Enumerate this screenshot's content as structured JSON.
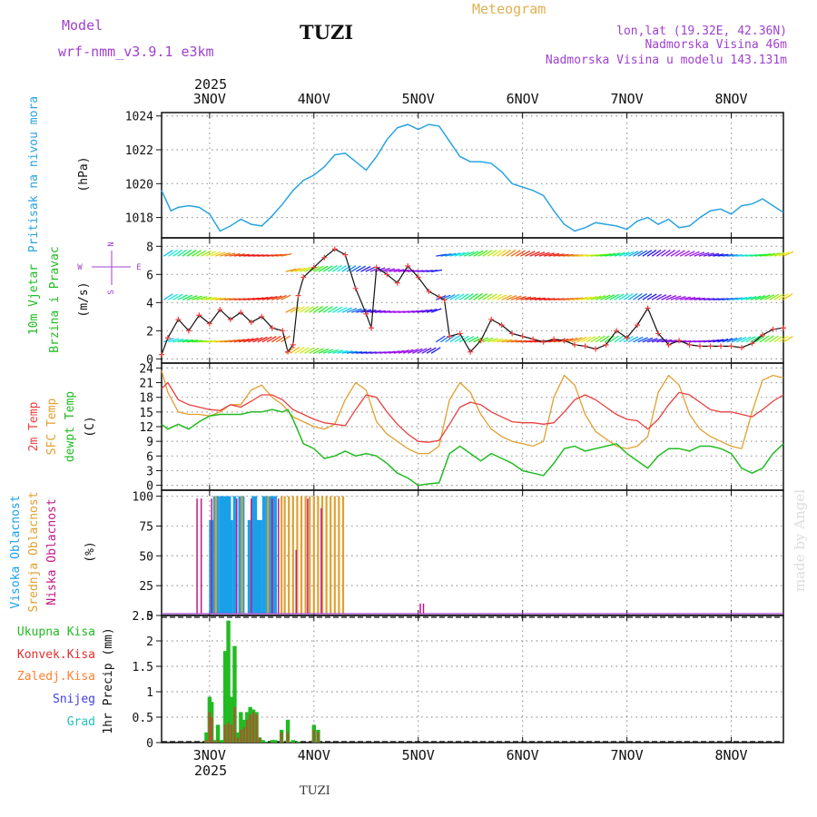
{
  "header": {
    "model_label": "Model",
    "model_name": "wrf-nmm_v3.9.1 e3km",
    "station": "TUZI",
    "meteogram": "Meteogram",
    "lonlat": "lon,lat (19.32E, 42.36N)",
    "elevation": "Nadmorska Visina 46m",
    "model_elevation": "Nadmorska Visina u modelu 143.131m",
    "footer_station": "TUZI",
    "watermark": "made by Angel",
    "year": "2025"
  },
  "colors": {
    "pressure": "#2aa3e0",
    "wind": "#22bb22",
    "temp2m": "#e84040",
    "sfc": "#e0a030",
    "dewpt": "#22bb22",
    "high": "#1aa0e8",
    "mid": "#e0a030",
    "low": "#c01888",
    "purple": "#a040d0",
    "conv": "#e03030",
    "frozen": "#ff8030",
    "snow": "#4040e0",
    "grad": "#20c0c0"
  },
  "chart_data": [
    {
      "type": "line",
      "title": "Pritisak na nivou mora",
      "ylabel": "(hPa)",
      "ylim": [
        1016.8,
        1024.2
      ],
      "yticks": [
        "1024",
        "1022",
        "1020",
        "1018"
      ],
      "xlim": [
        2.54,
        8.5
      ],
      "xticks": [
        "3NOV",
        "4NOV",
        "5NOV",
        "6NOV",
        "7NOV",
        "8NOV"
      ],
      "x": [
        2.54,
        2.63,
        2.7,
        2.8,
        2.9,
        3.0,
        3.1,
        3.2,
        3.3,
        3.4,
        3.5,
        3.6,
        3.7,
        3.8,
        3.9,
        4.0,
        4.1,
        4.2,
        4.3,
        4.4,
        4.5,
        4.6,
        4.7,
        4.8,
        4.9,
        5.0,
        5.1,
        5.2,
        5.3,
        5.4,
        5.5,
        5.6,
        5.7,
        5.8,
        5.9,
        6.0,
        6.1,
        6.2,
        6.3,
        6.4,
        6.5,
        6.6,
        6.7,
        6.8,
        6.9,
        7.0,
        7.1,
        7.2,
        7.3,
        7.4,
        7.5,
        7.6,
        7.7,
        7.8,
        7.9,
        8.0,
        8.1,
        8.2,
        8.3,
        8.4,
        8.5
      ],
      "values": [
        1019.6,
        1018.4,
        1018.6,
        1018.7,
        1018.6,
        1018.2,
        1017.2,
        1017.5,
        1017.9,
        1017.6,
        1017.5,
        1018.1,
        1018.8,
        1019.6,
        1020.2,
        1020.5,
        1021.0,
        1021.7,
        1021.8,
        1021.3,
        1020.8,
        1021.6,
        1022.6,
        1023.3,
        1023.5,
        1023.2,
        1023.5,
        1023.4,
        1022.5,
        1021.6,
        1021.3,
        1021.3,
        1021.2,
        1020.7,
        1020.0,
        1019.8,
        1019.6,
        1019.3,
        1018.4,
        1017.6,
        1017.2,
        1017.4,
        1017.7,
        1017.6,
        1017.5,
        1017.3,
        1017.8,
        1018.0,
        1017.6,
        1017.9,
        1017.4,
        1017.5,
        1018.0,
        1018.4,
        1018.5,
        1018.2,
        1018.7,
        1018.8,
        1019.1,
        1018.7,
        1018.3
      ]
    },
    {
      "type": "line",
      "title": "10m Vjetar Brzina i Pravac",
      "ylabel": "(m/s)",
      "compass": [
        "N",
        "W",
        "E",
        "S"
      ],
      "ylim": [
        -0.3,
        8.6
      ],
      "yticks": [
        "8",
        "6",
        "4",
        "2",
        "0"
      ],
      "x": [
        2.54,
        2.6,
        2.7,
        2.8,
        2.9,
        3.0,
        3.1,
        3.2,
        3.3,
        3.4,
        3.5,
        3.6,
        3.7,
        3.75,
        3.8,
        3.85,
        3.9,
        4.0,
        4.1,
        4.2,
        4.3,
        4.4,
        4.5,
        4.55,
        4.6,
        4.7,
        4.8,
        4.9,
        5.0,
        5.1,
        5.2,
        5.25,
        5.3,
        5.4,
        5.5,
        5.6,
        5.7,
        5.8,
        5.9,
        6.0,
        6.1,
        6.2,
        6.3,
        6.4,
        6.5,
        6.6,
        6.7,
        6.8,
        6.9,
        7.0,
        7.1,
        7.2,
        7.3,
        7.4,
        7.5,
        7.6,
        7.7,
        7.8,
        7.9,
        8.0,
        8.1,
        8.2,
        8.3,
        8.4,
        8.5
      ],
      "values": [
        0.3,
        1.5,
        2.8,
        2.0,
        3.1,
        2.5,
        3.5,
        2.8,
        3.3,
        2.6,
        3.0,
        2.2,
        2.0,
        0.5,
        1.0,
        4.5,
        5.8,
        6.5,
        7.2,
        7.8,
        7.4,
        5.0,
        3.2,
        2.2,
        6.5,
        6.0,
        5.4,
        6.6,
        5.8,
        4.8,
        4.4,
        4.2,
        1.6,
        1.8,
        0.5,
        1.3,
        2.8,
        2.4,
        1.8,
        1.6,
        1.4,
        1.2,
        1.4,
        1.3,
        1.0,
        0.9,
        0.7,
        1.0,
        2.0,
        1.5,
        2.4,
        3.6,
        1.8,
        1.0,
        1.3,
        1.0,
        0.9,
        0.9,
        0.9,
        0.9,
        0.8,
        1.1,
        1.7,
        2.1,
        2.2
      ]
    },
    {
      "type": "line",
      "title": "2m Temp / SFC Temp / dewpt Temp",
      "ylabel": "(C)",
      "ylim": [
        -1,
        25
      ],
      "yticks": [
        "24",
        "21",
        "18",
        "15",
        "12",
        "9",
        "6",
        "3",
        "0"
      ],
      "series": [
        {
          "name": "2m Temp",
          "x": [
            2.54,
            2.6,
            2.7,
            2.8,
            2.9,
            3.0,
            3.1,
            3.2,
            3.3,
            3.4,
            3.5,
            3.6,
            3.7,
            3.8,
            3.9,
            4.0,
            4.1,
            4.2,
            4.3,
            4.4,
            4.5,
            4.6,
            4.7,
            4.8,
            4.9,
            5.0,
            5.1,
            5.2,
            5.3,
            5.4,
            5.5,
            5.6,
            5.7,
            5.8,
            5.9,
            6.0,
            6.1,
            6.2,
            6.3,
            6.4,
            6.5,
            6.6,
            6.7,
            6.8,
            6.9,
            7.0,
            7.1,
            7.2,
            7.3,
            7.4,
            7.5,
            7.6,
            7.7,
            7.8,
            7.9,
            8.0,
            8.1,
            8.2,
            8.3,
            8.4,
            8.5
          ],
          "values": [
            19.8,
            21.0,
            17.5,
            16.5,
            16.0,
            15.5,
            15.3,
            16.5,
            16.0,
            17.2,
            18.5,
            18.5,
            17.5,
            15.5,
            14.5,
            13.5,
            12.8,
            12.5,
            12.2,
            15.5,
            18.5,
            18.0,
            15.0,
            12.5,
            10.5,
            9.0,
            8.8,
            9.2,
            12.5,
            16.0,
            17.0,
            16.5,
            15.0,
            14.0,
            13.0,
            12.8,
            12.8,
            12.5,
            12.8,
            15.0,
            17.5,
            18.5,
            17.5,
            16.0,
            14.5,
            13.5,
            13.2,
            11.5,
            13.5,
            16.5,
            19.0,
            18.5,
            17.0,
            15.5,
            15.0,
            15.0,
            14.5,
            14.0,
            15.5,
            17.2,
            18.5
          ]
        },
        {
          "name": "SFC Temp",
          "x": [
            2.54,
            2.6,
            2.7,
            2.8,
            2.9,
            3.0,
            3.1,
            3.2,
            3.3,
            3.4,
            3.5,
            3.6,
            3.7,
            3.8,
            3.9,
            4.0,
            4.1,
            4.2,
            4.3,
            4.4,
            4.5,
            4.6,
            4.7,
            4.8,
            4.9,
            5.0,
            5.1,
            5.2,
            5.3,
            5.4,
            5.5,
            5.6,
            5.7,
            5.8,
            5.9,
            6.0,
            6.1,
            6.2,
            6.3,
            6.4,
            6.5,
            6.6,
            6.7,
            6.8,
            6.9,
            7.0,
            7.1,
            7.2,
            7.3,
            7.4,
            7.5,
            7.6,
            7.7,
            7.8,
            7.9,
            8.0,
            8.1,
            8.2,
            8.3,
            8.4,
            8.5
          ],
          "values": [
            23.5,
            19.0,
            15.0,
            14.5,
            14.5,
            14.2,
            15.0,
            16.5,
            16.5,
            19.5,
            20.5,
            18.0,
            16.5,
            14.0,
            13.0,
            12.0,
            11.5,
            12.5,
            17.5,
            21.0,
            19.5,
            13.0,
            10.5,
            9.0,
            7.5,
            6.5,
            6.5,
            8.0,
            17.5,
            21.0,
            19.0,
            14.5,
            11.5,
            10.0,
            9.0,
            8.5,
            8.0,
            9.0,
            18.0,
            22.5,
            20.5,
            14.5,
            11.0,
            9.5,
            8.0,
            7.5,
            8.0,
            10.0,
            19.0,
            22.5,
            20.5,
            14.5,
            11.5,
            10.0,
            9.0,
            8.0,
            7.5,
            15.0,
            21.5,
            22.5,
            22.0
          ]
        },
        {
          "name": "dewpt Temp",
          "x": [
            2.54,
            2.6,
            2.7,
            2.8,
            2.9,
            3.0,
            3.1,
            3.2,
            3.3,
            3.4,
            3.5,
            3.6,
            3.7,
            3.75,
            3.8,
            3.9,
            4.0,
            4.1,
            4.2,
            4.3,
            4.4,
            4.5,
            4.6,
            4.7,
            4.8,
            4.9,
            5.0,
            5.1,
            5.2,
            5.3,
            5.4,
            5.5,
            5.6,
            5.7,
            5.8,
            5.9,
            6.0,
            6.1,
            6.2,
            6.3,
            6.4,
            6.5,
            6.6,
            6.7,
            6.8,
            6.9,
            7.0,
            7.1,
            7.2,
            7.3,
            7.4,
            7.5,
            7.6,
            7.7,
            7.8,
            7.9,
            8.0,
            8.1,
            8.2,
            8.3,
            8.4,
            8.5
          ],
          "values": [
            12.5,
            11.5,
            12.5,
            11.5,
            13.0,
            14.2,
            14.5,
            14.5,
            14.5,
            15.0,
            15.0,
            15.5,
            15.0,
            15.5,
            13.5,
            8.5,
            7.5,
            5.5,
            6.0,
            7.0,
            6.0,
            6.5,
            6.0,
            4.5,
            2.5,
            1.5,
            0.0,
            0.3,
            0.5,
            6.5,
            8.0,
            6.5,
            5.0,
            6.5,
            5.5,
            4.5,
            3.0,
            2.5,
            2.0,
            4.5,
            7.5,
            8.0,
            7.0,
            7.5,
            8.0,
            8.5,
            6.5,
            5.0,
            3.5,
            6.0,
            7.5,
            7.5,
            7.0,
            8.0,
            8.0,
            7.5,
            6.5,
            3.5,
            2.5,
            3.5,
            6.5,
            8.5
          ]
        }
      ]
    },
    {
      "type": "bar",
      "title": "Visoka Oblacnost / Srednja Oblacnost / Niska Oblacnost",
      "ylabel": "(%)",
      "ylim": [
        0,
        105
      ],
      "yticks": [
        "100",
        "75",
        "50",
        "25",
        "0"
      ],
      "series": [
        {
          "name": "Visoka Oblacnost",
          "x": [
            3.01,
            3.03,
            3.05,
            3.08,
            3.11,
            3.13,
            3.16,
            3.19,
            3.21,
            3.24,
            3.29,
            3.32,
            3.38,
            3.42,
            3.44,
            3.46,
            3.49,
            3.52,
            3.55,
            3.58,
            3.6,
            3.63
          ],
          "values": [
            80,
            80,
            100,
            100,
            100,
            100,
            100,
            100,
            80,
            100,
            100,
            100,
            80,
            100,
            100,
            80,
            80,
            100,
            100,
            100,
            100,
            100
          ]
        },
        {
          "name": "Srednja Oblacnost",
          "x": [
            3.06,
            3.31,
            3.56,
            3.69,
            3.72,
            3.76,
            3.8,
            3.84,
            3.88,
            3.92,
            3.96,
            4.0,
            4.04,
            4.08,
            4.12,
            4.16,
            4.2,
            4.24,
            4.28
          ],
          "values": [
            100,
            100,
            100,
            100,
            100,
            100,
            100,
            100,
            100,
            100,
            100,
            100,
            100,
            100,
            100,
            100,
            100,
            100,
            100
          ]
        },
        {
          "name": "Niska Oblacnost",
          "x": [
            2.88,
            2.92,
            3.02,
            3.26,
            3.4,
            3.6,
            3.66,
            3.83,
            3.94,
            4.07,
            5.02,
            5.05
          ],
          "values": [
            98,
            98,
            98,
            98,
            98,
            98,
            98,
            55,
            98,
            90,
            10,
            10
          ]
        }
      ]
    },
    {
      "type": "bar",
      "title": "Ukupna Kisa / Konvek.Kisa / Zaledj.Kisa / Snijeg / Grad",
      "ylabel": "1hr Precip (mm)",
      "ylim": [
        0,
        2.5
      ],
      "yticks": [
        "2.5",
        "2",
        "1.5",
        "1",
        "0.5",
        "0"
      ],
      "series": [
        {
          "name": "Ukupna Kisa",
          "x": [
            2.97,
            3.0,
            3.02,
            3.04,
            3.08,
            3.12,
            3.15,
            3.18,
            3.21,
            3.24,
            3.27,
            3.3,
            3.33,
            3.36,
            3.39,
            3.42,
            3.45,
            3.48,
            3.51,
            3.54,
            3.6,
            3.63,
            3.69,
            3.75,
            3.8,
            3.85,
            4.0,
            4.04
          ],
          "values": [
            0.2,
            0.9,
            0.8,
            0.05,
            0.35,
            0.05,
            1.8,
            2.4,
            0.9,
            1.9,
            0.2,
            0.6,
            0.45,
            0.6,
            0.7,
            0.65,
            0.6,
            0.1,
            0.05,
            0.02,
            0.05,
            0.05,
            0.25,
            0.45,
            0.05,
            0.02,
            0.35,
            0.25
          ]
        },
        {
          "name": "Konvek.Kisa",
          "x": [
            2.97,
            3.0,
            3.02,
            3.04,
            3.08,
            3.15,
            3.18,
            3.21,
            3.24,
            3.27,
            3.3,
            3.33,
            3.36,
            3.39,
            3.42,
            3.45,
            3.48,
            3.69,
            3.75,
            4.0,
            4.04
          ],
          "values": [
            0.05,
            0.6,
            0.5,
            0.02,
            0.05,
            0.35,
            0.4,
            0.35,
            0.7,
            0.1,
            0.25,
            0.3,
            0.45,
            0.55,
            0.6,
            0.55,
            0.1,
            0.2,
            0.2,
            0.25,
            0.2
          ]
        },
        {
          "name": "Zaledj.Kisa",
          "x": [],
          "values": []
        },
        {
          "name": "Snijeg",
          "x": [],
          "values": []
        },
        {
          "name": "Grad",
          "x": [],
          "values": []
        }
      ]
    }
  ]
}
